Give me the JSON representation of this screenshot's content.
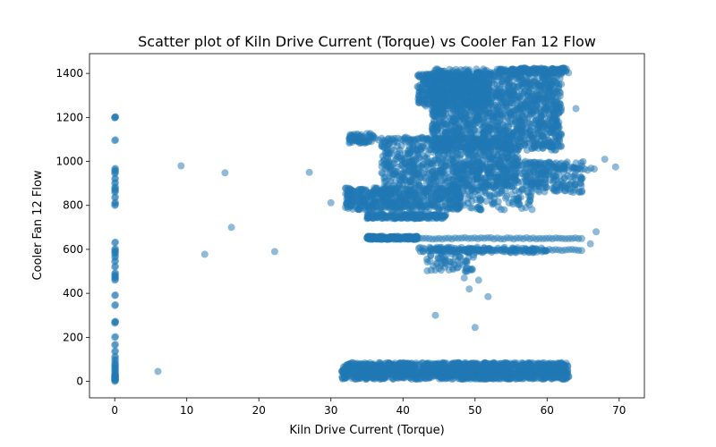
{
  "chart_data": {
    "type": "scatter",
    "title": "Scatter plot of Kiln Drive Current (Torque) vs Cooler Fan 12 Flow",
    "xlabel": "Kiln Drive Current (Torque)",
    "ylabel": "Cooler Fan 12 Flow",
    "xlim": [
      -3.5,
      73.5
    ],
    "ylim": [
      -75,
      1490
    ],
    "xticks": [
      0,
      10,
      20,
      30,
      40,
      50,
      60,
      70
    ],
    "yticks": [
      0,
      200,
      400,
      600,
      800,
      1000,
      1200,
      1400
    ],
    "grid": false,
    "legend": "none",
    "color": "#1f77b4",
    "alpha": 0.5,
    "outliers": [
      [
        6.0,
        45
      ],
      [
        9.2,
        980
      ],
      [
        12.5,
        578
      ],
      [
        15.3,
        948
      ],
      [
        16.2,
        700
      ],
      [
        22.2,
        590
      ],
      [
        27.0,
        950
      ],
      [
        30.0,
        812
      ],
      [
        44.5,
        300
      ],
      [
        50.0,
        245
      ],
      [
        51.8,
        385
      ],
      [
        49.2,
        420
      ],
      [
        48.5,
        470
      ],
      [
        50.5,
        460
      ],
      [
        66.8,
        680
      ],
      [
        66.0,
        625
      ],
      [
        69.5,
        975
      ],
      [
        68.0,
        1010
      ],
      [
        64.0,
        1240
      ],
      [
        57.0,
        1000
      ]
    ],
    "zero_column": [
      1200,
      1198,
      1095,
      965,
      955,
      945,
      920,
      900,
      880,
      870,
      860,
      835,
      810,
      800,
      630,
      600,
      590,
      580,
      565,
      545,
      520,
      490,
      480,
      470,
      460,
      390,
      345,
      270,
      265,
      200,
      165,
      135,
      110,
      95,
      80,
      70,
      60,
      50,
      40,
      30,
      20,
      10,
      0,
      5,
      15,
      25
    ],
    "clusters": [
      {
        "x": [
          31.5,
          63
        ],
        "y": [
          10,
          85
        ],
        "n": 1400
      },
      {
        "x": [
          44,
          62
        ],
        "y": [
          1050,
          1420
        ],
        "n": 1500
      },
      {
        "x": [
          42,
          52
        ],
        "y": [
          1250,
          1400
        ],
        "n": 400
      },
      {
        "x": [
          37,
          56
        ],
        "y": [
          880,
          1110
        ],
        "n": 700
      },
      {
        "x": [
          32,
          48
        ],
        "y": [
          780,
          880
        ],
        "n": 500
      },
      {
        "x": [
          35,
          46
        ],
        "y": [
          740,
          760
        ],
        "n": 200
      },
      {
        "x": [
          35,
          42
        ],
        "y": [
          645,
          660
        ],
        "n": 200
      },
      {
        "x": [
          42,
          60
        ],
        "y": [
          585,
          610
        ],
        "n": 150
      },
      {
        "x": [
          47,
          58
        ],
        "y": [
          780,
          1000
        ],
        "n": 250
      },
      {
        "x": [
          57,
          65
        ],
        "y": [
          860,
          1000
        ],
        "n": 180
      },
      {
        "x": [
          43,
          50
        ],
        "y": [
          500,
          580
        ],
        "n": 60
      },
      {
        "x": [
          32.5,
          36
        ],
        "y": [
          1080,
          1130
        ],
        "n": 60
      },
      {
        "x": [
          55,
          63
        ],
        "y": [
          1400,
          1425
        ],
        "n": 120
      }
    ],
    "bands": [
      {
        "x": [
          36,
          65
        ],
        "y0": 650,
        "spread": 6
      },
      {
        "x": [
          45,
          65
        ],
        "y0": 597,
        "spread": 6
      },
      {
        "x": [
          58,
          67
        ],
        "y0": 965,
        "spread": 12
      },
      {
        "x": [
          33,
          49
        ],
        "y0": 1100,
        "spread": 15
      }
    ]
  }
}
